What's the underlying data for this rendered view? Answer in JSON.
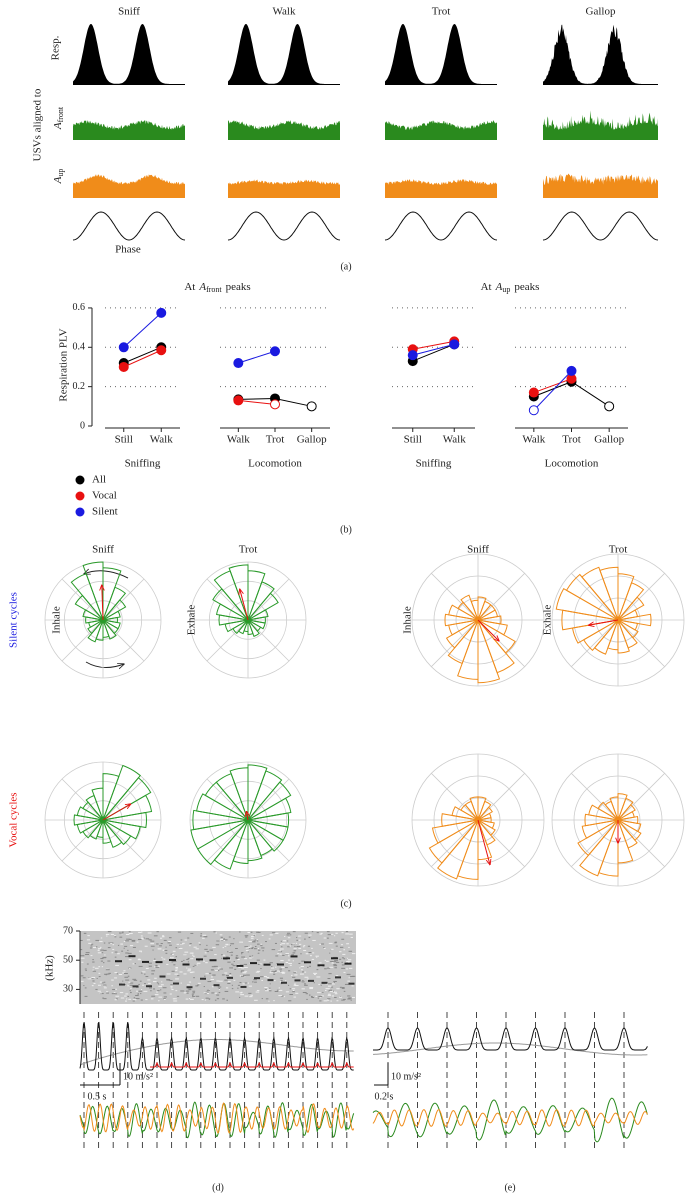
{
  "panel_a": {
    "columns": [
      "Sniff",
      "Walk",
      "Trot",
      "Gallop"
    ],
    "resp_label": "Resp.",
    "aligned_label": "USVs aligned to",
    "a_front": {
      "base": "A",
      "sub": "front"
    },
    "a_up": {
      "base": "A",
      "sub": "up"
    },
    "phase_label": "Phase",
    "panel_label": "(a)"
  },
  "panel_b": {
    "panel_label": "(b)"
  },
  "panel_c": {
    "columns": [
      "Sniff",
      "Trot",
      "Sniff",
      "Trot"
    ],
    "row_labels": [
      "Silent cycles",
      "Vocal cycles"
    ],
    "side_labels": [
      "Inhale",
      "Exhale",
      "Inhale",
      "Exhale"
    ],
    "panel_label": "(c)"
  },
  "panel_d": {
    "freq_ticks": [
      70,
      50,
      30
    ],
    "freq_unit": "(kHz)",
    "scale_accel": "10 m/s²",
    "scale_time": "0.5 s",
    "panel_label": "(d)"
  },
  "panel_e": {
    "scale_accel": "10 m/s²",
    "scale_time": "0.2 s",
    "panel_label": "(e)"
  },
  "chart_data": [
    {
      "type": "line",
      "title": [
        "At",
        "A",
        "front",
        "peaks"
      ],
      "ylabel": "Respiration PLV",
      "xlabel": "Sniffing",
      "categories": [
        "Still",
        "Walk"
      ],
      "ylim": [
        0,
        0.62
      ],
      "yticks": [
        0,
        0.2,
        0.4,
        0.6
      ],
      "grid": true,
      "series": [
        {
          "name": "All",
          "color": "#000000",
          "values": [
            0.32,
            0.4
          ],
          "hollow": [
            false,
            false
          ]
        },
        {
          "name": "Vocal",
          "color": "#e81010",
          "values": [
            0.3,
            0.385
          ],
          "hollow": [
            false,
            false
          ]
        },
        {
          "name": "Silent",
          "color": "#1a1ae0",
          "values": [
            0.4,
            0.575
          ],
          "hollow": [
            false,
            false
          ]
        }
      ]
    },
    {
      "type": "line",
      "xlabel": "Locomotion",
      "categories": [
        "Walk",
        "Trot",
        "Gallop"
      ],
      "ylim": [
        0,
        0.62
      ],
      "grid": true,
      "series": [
        {
          "color": "#000000",
          "values": [
            0.135,
            0.14,
            0.1
          ],
          "hollow": [
            false,
            false,
            true
          ]
        },
        {
          "color": "#e81010",
          "values": [
            0.13,
            0.11,
            null
          ],
          "hollow": [
            false,
            true,
            false
          ]
        },
        {
          "color": "#1a1ae0",
          "values": [
            0.32,
            0.38,
            null
          ],
          "hollow": [
            false,
            false,
            false
          ]
        }
      ]
    },
    {
      "type": "line",
      "title": [
        "At",
        "A",
        "up",
        "peaks"
      ],
      "xlabel": "Sniffing",
      "categories": [
        "Still",
        "Walk"
      ],
      "ylim": [
        0,
        0.62
      ],
      "grid": true,
      "series": [
        {
          "color": "#000000",
          "values": [
            0.33,
            0.415
          ],
          "hollow": [
            false,
            false
          ]
        },
        {
          "color": "#e81010",
          "values": [
            0.39,
            0.43
          ],
          "hollow": [
            false,
            false
          ]
        },
        {
          "color": "#1a1ae0",
          "values": [
            0.36,
            0.415
          ],
          "hollow": [
            false,
            false
          ]
        }
      ]
    },
    {
      "type": "line",
      "xlabel": "Locomotion",
      "categories": [
        "Walk",
        "Trot",
        "Gallop"
      ],
      "ylim": [
        0,
        0.62
      ],
      "grid": true,
      "series": [
        {
          "color": "#000000",
          "values": [
            0.15,
            0.225,
            0.1
          ],
          "hollow": [
            false,
            false,
            true
          ]
        },
        {
          "color": "#e81010",
          "values": [
            0.17,
            0.24,
            null
          ],
          "hollow": [
            false,
            false,
            false
          ]
        },
        {
          "color": "#1a1ae0",
          "values": [
            0.08,
            0.28,
            null
          ],
          "hollow": [
            true,
            false,
            false
          ]
        }
      ]
    },
    {
      "type": "rose",
      "color": "#2a9a2a",
      "values": [
        0.25,
        0.3,
        0.45,
        0.6,
        0.9,
        1.0,
        0.85,
        0.55,
        0.35,
        0.3,
        0.25,
        0.3,
        0.4,
        0.35,
        0.3,
        0.35,
        0.3,
        0.3
      ],
      "mean_vector": {
        "angle": 92,
        "length": 0.6
      }
    },
    {
      "type": "rose",
      "color": "#2a9a2a",
      "values": [
        0.3,
        0.35,
        0.6,
        0.7,
        0.85,
        0.95,
        0.9,
        0.7,
        0.55,
        0.5,
        0.4,
        0.3,
        0.25,
        0.2,
        0.25,
        0.3,
        0.25,
        0.3
      ],
      "mean_vector": {
        "angle": 105,
        "length": 0.55
      }
    },
    {
      "type": "rose",
      "color": "#f08c1a",
      "values": [
        0.35,
        0.3,
        0.3,
        0.3,
        0.35,
        0.3,
        0.4,
        0.35,
        0.45,
        0.5,
        0.45,
        0.55,
        0.7,
        0.9,
        0.95,
        0.85,
        0.65,
        0.45
      ],
      "mean_vector": {
        "angle": 315,
        "length": 0.45
      }
    },
    {
      "type": "rose",
      "color": "#f08c1a",
      "values": [
        0.5,
        0.3,
        0.45,
        0.6,
        0.7,
        0.8,
        0.85,
        0.9,
        0.95,
        0.85,
        0.7,
        0.6,
        0.55,
        0.45,
        0.5,
        0.45,
        0.35,
        0.3
      ],
      "mean_vector": {
        "angle": 190,
        "length": 0.45
      }
    },
    {
      "type": "rose",
      "color": "#2a9a2a",
      "values": [
        0.75,
        0.85,
        0.95,
        1.0,
        0.8,
        0.55,
        0.45,
        0.4,
        0.45,
        0.5,
        0.45,
        0.4,
        0.35,
        0.3,
        0.4,
        0.5,
        0.55,
        0.65
      ],
      "mean_vector": {
        "angle": 30,
        "length": 0.55
      }
    },
    {
      "type": "rose",
      "color": "#2a9a2a",
      "values": [
        0.7,
        0.75,
        0.85,
        0.9,
        0.95,
        0.9,
        0.85,
        0.85,
        0.9,
        0.95,
        1.0,
        1.0,
        0.9,
        0.75,
        0.7,
        0.65,
        0.7,
        0.7
      ],
      "mean_vector": {
        "angle": 100,
        "length": 0.15
      }
    },
    {
      "type": "rose",
      "color": "#f08c1a",
      "values": [
        0.2,
        0.2,
        0.25,
        0.3,
        0.35,
        0.35,
        0.3,
        0.3,
        0.4,
        0.55,
        0.7,
        0.85,
        0.95,
        0.9,
        0.6,
        0.4,
        0.3,
        0.25
      ],
      "mean_vector": {
        "angle": 285,
        "length": 0.7
      }
    },
    {
      "type": "rose",
      "color": "#f08c1a",
      "values": [
        0.3,
        0.25,
        0.3,
        0.35,
        0.4,
        0.35,
        0.3,
        0.35,
        0.45,
        0.5,
        0.55,
        0.7,
        0.9,
        0.85,
        0.65,
        0.45,
        0.4,
        0.35
      ],
      "mean_vector": {
        "angle": 270,
        "length": 0.35
      }
    }
  ]
}
